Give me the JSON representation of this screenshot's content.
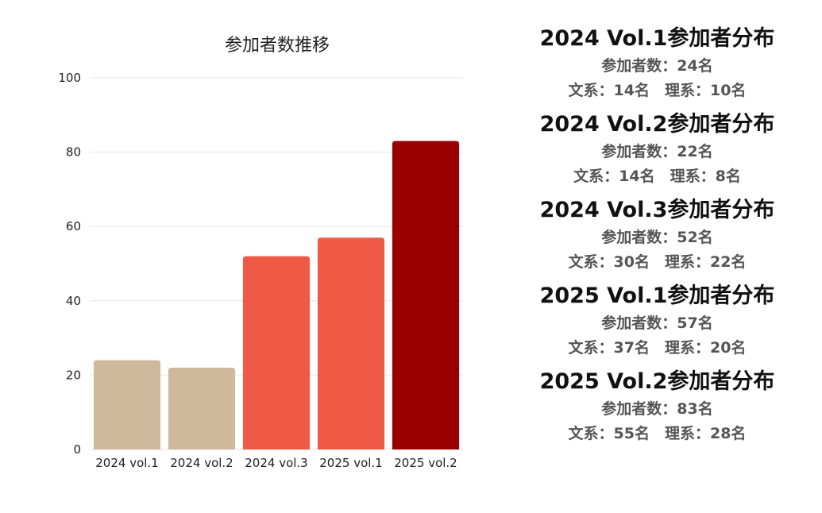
{
  "chart_data": {
    "type": "bar",
    "title": "参加者数推移",
    "xlabel": "",
    "ylabel": "",
    "categories": [
      "2024 vol.1",
      "2024 vol.2",
      "2024 vol.3",
      "2025 vol.1",
      "2025 vol.2"
    ],
    "values": [
      24,
      22,
      52,
      57,
      83
    ],
    "bar_colors": [
      "#cfb89c",
      "#cfb89c",
      "#ef5a47",
      "#ef5a47",
      "#9b0000"
    ],
    "ylim": [
      0,
      100
    ],
    "yticks": [
      "0",
      "20",
      "40",
      "60",
      "80",
      "100"
    ],
    "grid": true,
    "legend": "none"
  },
  "summary": {
    "blocks": [
      {
        "title": "2024 Vol.1参加者分布",
        "total": "参加者数：24名",
        "breakdown": "文系：14名　理系：10名"
      },
      {
        "title": "2024 Vol.2参加者分布",
        "total": "参加者数：22名",
        "breakdown": "文系：14名　理系：8名"
      },
      {
        "title": "2024 Vol.3参加者分布",
        "total": "参加者数：52名",
        "breakdown": "文系：30名　理系：22名"
      },
      {
        "title": "2025 Vol.1参加者分布",
        "total": "参加者数：57名",
        "breakdown": "文系：37名　理系：20名"
      },
      {
        "title": "2025 Vol.2参加者分布",
        "total": "参加者数：83名",
        "breakdown": "文系：55名　理系：28名"
      }
    ]
  }
}
